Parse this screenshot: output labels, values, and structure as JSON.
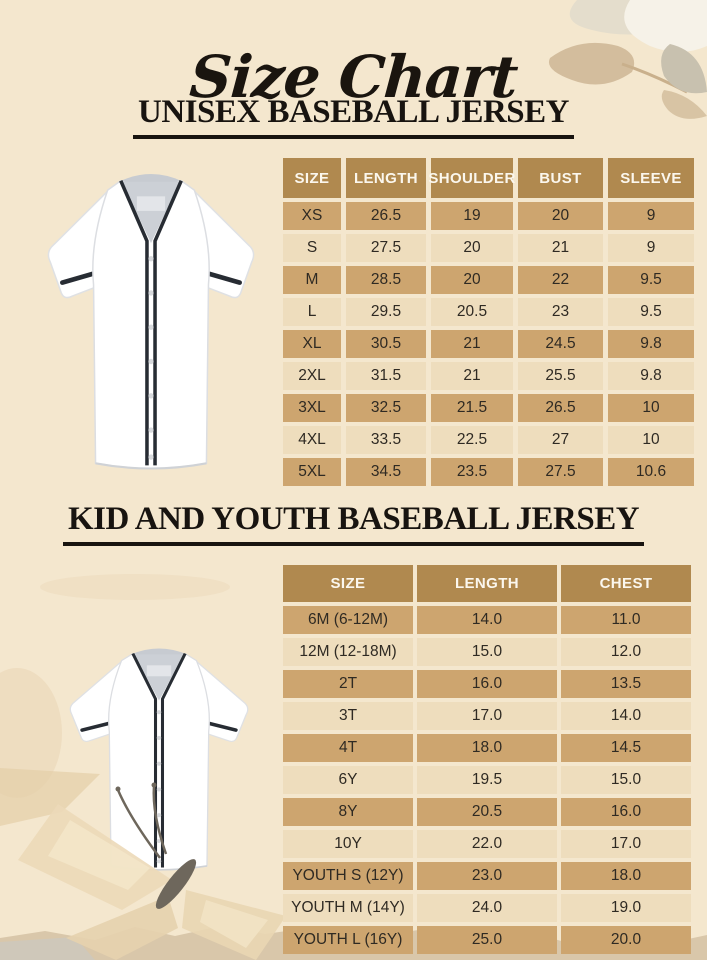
{
  "page": {
    "title": "Size Chart",
    "background": "#f4e7ce"
  },
  "colors": {
    "page_bg": "#f4e7ce",
    "header_bg": "#b0894f",
    "header_text": "#fbf7ee",
    "row_dark": "#cda56f",
    "row_light": "#eeddbd",
    "cell_text": "#2f2a23",
    "heading_text": "#181410"
  },
  "decorations": {
    "top_right": "dried-paper-leaves",
    "bottom_left": "paper-butterfly",
    "bottom_edge": "torn-paper-strip"
  },
  "sections": [
    {
      "heading": "UNISEX BASEBALL JERSEY",
      "image": "white-baseball-jersey-front",
      "table": {
        "headers": [
          "SIZE",
          "LENGTH",
          "SHOULDER",
          "BUST",
          "SLEEVE"
        ],
        "rows": [
          [
            "XS",
            "26.5",
            "19",
            "20",
            "9"
          ],
          [
            "S",
            "27.5",
            "20",
            "21",
            "9"
          ],
          [
            "M",
            "28.5",
            "20",
            "22",
            "9.5"
          ],
          [
            "L",
            "29.5",
            "20.5",
            "23",
            "9.5"
          ],
          [
            "XL",
            "30.5",
            "21",
            "24.5",
            "9.8"
          ],
          [
            "2XL",
            "31.5",
            "21",
            "25.5",
            "9.8"
          ],
          [
            "3XL",
            "32.5",
            "21.5",
            "26.5",
            "10"
          ],
          [
            "4XL",
            "33.5",
            "22.5",
            "27",
            "10"
          ],
          [
            "5XL",
            "34.5",
            "23.5",
            "27.5",
            "10.6"
          ]
        ]
      }
    },
    {
      "heading": "KID AND YOUTH BASEBALL JERSEY",
      "image": "white-baseball-jersey-front",
      "table": {
        "headers": [
          "SIZE",
          "LENGTH",
          "CHEST"
        ],
        "rows": [
          [
            "6M (6-12M)",
            "14.0",
            "11.0"
          ],
          [
            "12M (12-18M)",
            "15.0",
            "12.0"
          ],
          [
            "2T",
            "16.0",
            "13.5"
          ],
          [
            "3T",
            "17.0",
            "14.0"
          ],
          [
            "4T",
            "18.0",
            "14.5"
          ],
          [
            "6Y",
            "19.5",
            "15.0"
          ],
          [
            "8Y",
            "20.5",
            "16.0"
          ],
          [
            "10Y",
            "22.0",
            "17.0"
          ],
          [
            "YOUTH S (12Y)",
            "23.0",
            "18.0"
          ],
          [
            "YOUTH M (14Y)",
            "24.0",
            "19.0"
          ],
          [
            "YOUTH L (16Y)",
            "25.0",
            "20.0"
          ]
        ]
      }
    }
  ]
}
